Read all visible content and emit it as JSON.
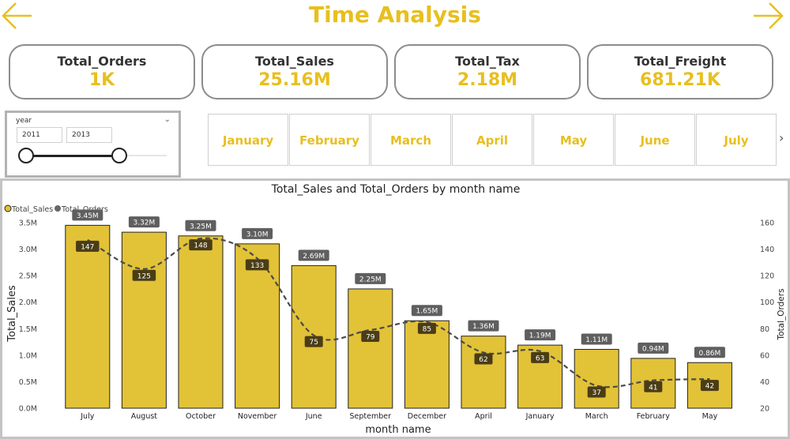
{
  "header": {
    "title": "Time Analysis",
    "back_icon": "arrow-left-icon",
    "forward_icon": "arrow-right-icon",
    "accent": "#E8BF1E"
  },
  "kpis": [
    {
      "label": "Total_Orders",
      "value": "1K"
    },
    {
      "label": "Total_Sales",
      "value": "25.16M"
    },
    {
      "label": "Total_Tax",
      "value": "2.18M"
    },
    {
      "label": "Total_Freight",
      "value": "681.21K"
    }
  ],
  "year_slicer": {
    "title": "year",
    "start": "2011",
    "end": "2013",
    "chevron_icon": "chevron-down-icon"
  },
  "month_tiles": [
    "January",
    "February",
    "March",
    "April",
    "May",
    "June",
    "July"
  ],
  "month_next_icon": "chevron-right-icon",
  "chart_data": {
    "type": "bar",
    "title": "Total_Sales and Total_Orders by month name",
    "xlabel": "month name",
    "ylabel": "Total_Sales",
    "y2label": "Total_Orders",
    "categories": [
      "July",
      "August",
      "October",
      "November",
      "June",
      "September",
      "December",
      "April",
      "January",
      "March",
      "February",
      "May"
    ],
    "series": [
      {
        "name": "Total_Sales",
        "type": "bar",
        "color": "#E2C237",
        "values": [
          3.45,
          3.32,
          3.25,
          3.1,
          2.69,
          2.25,
          1.65,
          1.36,
          1.19,
          1.11,
          0.94,
          0.86
        ],
        "labels": [
          "3.45M",
          "3.32M",
          "3.25M",
          "3.10M",
          "2.69M",
          "2.25M",
          "1.65M",
          "1.36M",
          "1.19M",
          "1.11M",
          "0.94M",
          "0.86M"
        ]
      },
      {
        "name": "Total_Orders",
        "type": "line",
        "color": "#555555",
        "values": [
          147,
          125,
          148,
          133,
          75,
          79,
          85,
          62,
          63,
          37,
          41,
          42
        ]
      }
    ],
    "y_ticks": [
      "0.0M",
      "0.5M",
      "1.0M",
      "1.5M",
      "2.0M",
      "2.5M",
      "3.0M",
      "3.5M"
    ],
    "y_range": [
      0,
      3.5
    ],
    "y2_ticks": [
      "20",
      "40",
      "60",
      "80",
      "100",
      "120",
      "140",
      "160"
    ],
    "y2_range": [
      20,
      160
    ],
    "legend_position": "top-left"
  }
}
